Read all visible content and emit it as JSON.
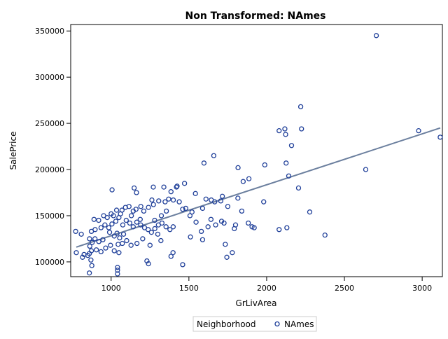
{
  "chart_data": {
    "type": "scatter",
    "title": "Non Transformed: NAmes",
    "xlabel": "GrLivArea",
    "ylabel": "SalePrice",
    "xlim": [
      740,
      3130
    ],
    "ylim": [
      84000,
      357000
    ],
    "xticks": [
      1000,
      1500,
      2000,
      2500,
      3000
    ],
    "yticks": [
      100000,
      150000,
      200000,
      250000,
      300000,
      350000
    ],
    "xtick_labels": [
      "1000",
      "1500",
      "2000",
      "2500",
      "3000"
    ],
    "ytick_labels": [
      "100000",
      "150000",
      "200000",
      "250000",
      "300000",
      "350000"
    ],
    "grid": false,
    "legend": {
      "title": "Neighborhood",
      "position": "bottom-center"
    },
    "colors": {
      "marker": "#1f3f99",
      "fit_line": "#6b7f9e",
      "frame": "#000000"
    },
    "series": [
      {
        "name": "NAmes",
        "points": [
          [
            2705,
            345000
          ],
          [
            2219,
            268000
          ],
          [
            2224,
            244000
          ],
          [
            2117,
            244000
          ],
          [
            2080,
            242000
          ],
          [
            2122,
            238000
          ],
          [
            2160,
            226000
          ],
          [
            2977,
            242000
          ],
          [
            3116,
            235000
          ],
          [
            2637,
            200000
          ],
          [
            1660,
            215000
          ],
          [
            1597,
            207000
          ],
          [
            1816,
            202000
          ],
          [
            1988,
            205000
          ],
          [
            2125,
            207000
          ],
          [
            2142,
            193000
          ],
          [
            1849,
            187000
          ],
          [
            1886,
            190000
          ],
          [
            2205,
            180000
          ],
          [
            1006,
            178000
          ],
          [
            1148,
            180000
          ],
          [
            1424,
            182000
          ],
          [
            1420,
            181000
          ],
          [
            1472,
            185000
          ],
          [
            1339,
            181000
          ],
          [
            1385,
            176000
          ],
          [
            1542,
            174000
          ],
          [
            1163,
            175000
          ],
          [
            1271,
            181000
          ],
          [
            1715,
            171000
          ],
          [
            1815,
            169000
          ],
          [
            1610,
            168000
          ],
          [
            1644,
            167000
          ],
          [
            1666,
            165000
          ],
          [
            1705,
            166000
          ],
          [
            1981,
            165000
          ],
          [
            1750,
            160000
          ],
          [
            1840,
            155000
          ],
          [
            2277,
            154000
          ],
          [
            1588,
            158000
          ],
          [
            1520,
            154000
          ],
          [
            1507,
            150000
          ],
          [
            1480,
            158000
          ],
          [
            1460,
            157000
          ],
          [
            1438,
            165000
          ],
          [
            1400,
            167000
          ],
          [
            1370,
            168000
          ],
          [
            1347,
            165000
          ],
          [
            1306,
            166000
          ],
          [
            1262,
            167000
          ],
          [
            1272,
            162000
          ],
          [
            1240,
            159000
          ],
          [
            1210,
            155000
          ],
          [
            1191,
            160000
          ],
          [
            1160,
            157000
          ],
          [
            1142,
            155000
          ],
          [
            1115,
            160000
          ],
          [
            1092,
            159000
          ],
          [
            1070,
            156000
          ],
          [
            1060,
            152000
          ],
          [
            1035,
            156000
          ],
          [
            1015,
            150000
          ],
          [
            1000,
            152000
          ],
          [
            975,
            148000
          ],
          [
            952,
            150000
          ],
          [
            920,
            145000
          ],
          [
            890,
            146000
          ],
          [
            873,
            133000
          ],
          [
            897,
            135000
          ],
          [
            935,
            137000
          ],
          [
            960,
            140000
          ],
          [
            985,
            137000
          ],
          [
            1005,
            141000
          ],
          [
            1030,
            144000
          ],
          [
            1050,
            148000
          ],
          [
            1075,
            140000
          ],
          [
            1097,
            145000
          ],
          [
            1120,
            142000
          ],
          [
            1142,
            138000
          ],
          [
            1165,
            143000
          ],
          [
            1190,
            140000
          ],
          [
            1215,
            137000
          ],
          [
            1238,
            135000
          ],
          [
            1259,
            132000
          ],
          [
            1281,
            136000
          ],
          [
            1304,
            140000
          ],
          [
            1327,
            142000
          ],
          [
            1353,
            138000
          ],
          [
            1378,
            135000
          ],
          [
            1399,
            138000
          ],
          [
            1250,
            118000
          ],
          [
            1203,
            125000
          ],
          [
            1166,
            120000
          ],
          [
            1128,
            118000
          ],
          [
            1100,
            123000
          ],
          [
            1072,
            120000
          ],
          [
            1045,
            119000
          ],
          [
            1020,
            112000
          ],
          [
            996,
            118000
          ],
          [
            965,
            115000
          ],
          [
            935,
            111000
          ],
          [
            905,
            113000
          ],
          [
            873,
            112000
          ],
          [
            860,
            109000
          ],
          [
            850,
            107000
          ],
          [
            826,
            108000
          ],
          [
            816,
            105000
          ],
          [
            776,
            110000
          ],
          [
            772,
            133000
          ],
          [
            808,
            130000
          ],
          [
            861,
            125000
          ],
          [
            863,
            117000
          ],
          [
            870,
            102000
          ],
          [
            876,
            96000
          ],
          [
            860,
            88000
          ],
          [
            1041,
            94000
          ],
          [
            1041,
            91000
          ],
          [
            1041,
            87000
          ],
          [
            1050,
            110000
          ],
          [
            1230,
            101000
          ],
          [
            1240,
            98000
          ],
          [
            1385,
            106000
          ],
          [
            1398,
            110000
          ],
          [
            1460,
            97000
          ],
          [
            1510,
            127000
          ],
          [
            1546,
            143000
          ],
          [
            1580,
            133000
          ],
          [
            1588,
            124000
          ],
          [
            1623,
            138000
          ],
          [
            1642,
            146000
          ],
          [
            1672,
            140000
          ],
          [
            1710,
            144000
          ],
          [
            1726,
            142000
          ],
          [
            1734,
            119000
          ],
          [
            1744,
            105000
          ],
          [
            1779,
            110000
          ],
          [
            1792,
            136000
          ],
          [
            1800,
            140000
          ],
          [
            1882,
            142000
          ],
          [
            1906,
            138000
          ],
          [
            1920,
            137000
          ],
          [
            2080,
            135000
          ],
          [
            2130,
            137000
          ],
          [
            2375,
            129000
          ],
          [
            1320,
            123000
          ],
          [
            1300,
            130000
          ],
          [
            1280,
            145000
          ],
          [
            1323,
            150000
          ],
          [
            1355,
            155000
          ],
          [
            1187,
            146000
          ],
          [
            1130,
            150000
          ],
          [
            1080,
            130000
          ],
          [
            1055,
            126000
          ],
          [
            1038,
            131000
          ],
          [
            1020,
            128000
          ],
          [
            990,
            132000
          ],
          [
            947,
            124000
          ],
          [
            921,
            122000
          ],
          [
            896,
            125000
          ],
          [
            878,
            121000
          ]
        ]
      }
    ],
    "fit_line": {
      "x": [
        776,
        3116
      ],
      "y": [
        116000,
        245000
      ]
    }
  }
}
